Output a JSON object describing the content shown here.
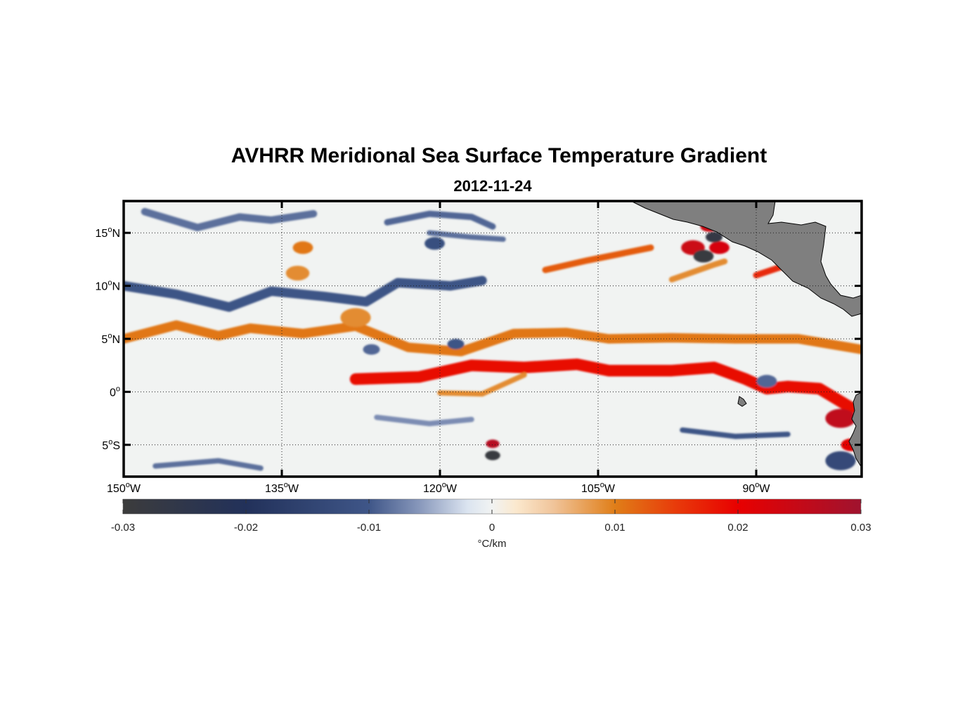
{
  "map": {
    "title": "AVHRR Meridional Sea Surface Temperature Gradient",
    "subtitle": "2012-11-24",
    "lon_range": [
      -150,
      -80
    ],
    "lat_range": [
      -8,
      18
    ],
    "lon_ticks": [
      {
        "value": -150,
        "num": "150",
        "unit": "W"
      },
      {
        "value": -135,
        "num": "135",
        "unit": "W"
      },
      {
        "value": -120,
        "num": "120",
        "unit": "W"
      },
      {
        "value": -105,
        "num": "105",
        "unit": "W"
      },
      {
        "value": -90,
        "num": "90",
        "unit": "W"
      }
    ],
    "lat_ticks": [
      {
        "value": 15,
        "num": "15",
        "unit": "N"
      },
      {
        "value": 10,
        "num": "10",
        "unit": "N"
      },
      {
        "value": 5,
        "num": "5",
        "unit": "N"
      },
      {
        "value": 0,
        "num": "0",
        "unit": ""
      },
      {
        "value": -5,
        "num": "5",
        "unit": "S"
      }
    ],
    "degree_symbol": "o",
    "land_color": "#7f7f7f",
    "features": [
      {
        "type": "band",
        "sign": "pos",
        "pts": [
          [
            -150,
            5.0
          ],
          [
            -145,
            6.3
          ],
          [
            -141,
            5.3
          ],
          [
            -138,
            6.0
          ],
          [
            -133,
            5.5
          ],
          [
            -128,
            6.2
          ],
          [
            -123,
            4.2
          ],
          [
            -118,
            3.8
          ],
          [
            -113,
            5.5
          ],
          [
            -108,
            5.6
          ],
          [
            -104,
            5.0
          ],
          [
            -98,
            5.1
          ],
          [
            -92,
            5.0
          ],
          [
            -86,
            5.0
          ],
          [
            -80,
            4.0
          ]
        ],
        "width": 0.9,
        "strength": 0.35
      },
      {
        "type": "band",
        "sign": "pos",
        "pts": [
          [
            -128,
            1.2
          ],
          [
            -122,
            1.4
          ],
          [
            -117,
            2.5
          ],
          [
            -112,
            2.3
          ],
          [
            -107,
            2.6
          ],
          [
            -104,
            2.0
          ],
          [
            -98,
            2.0
          ],
          [
            -94,
            2.3
          ],
          [
            -91,
            1.2
          ],
          [
            -89,
            0.3
          ],
          [
            -87,
            0.5
          ],
          [
            -84,
            0.3
          ],
          [
            -81,
            -1.5
          ]
        ],
        "width": 1.1,
        "strength": 0.62
      },
      {
        "type": "band",
        "sign": "pos",
        "pts": [
          [
            -110,
            11.5
          ],
          [
            -106,
            12.4
          ],
          [
            -103,
            13.0
          ],
          [
            -100,
            13.6
          ]
        ],
        "width": 0.6,
        "strength": 0.42
      },
      {
        "type": "band",
        "sign": "pos",
        "pts": [
          [
            -98,
            10.6
          ],
          [
            -94,
            12.0
          ],
          [
            -93,
            12.3
          ]
        ],
        "width": 0.55,
        "strength": 0.3
      },
      {
        "type": "band",
        "sign": "pos",
        "pts": [
          [
            -120,
            -0.1
          ],
          [
            -116,
            -0.2
          ],
          [
            -112,
            1.6
          ]
        ],
        "width": 0.5,
        "strength": 0.3
      },
      {
        "type": "band",
        "sign": "pos",
        "pts": [
          [
            -90,
            11.0
          ],
          [
            -87,
            12.0
          ]
        ],
        "width": 0.6,
        "strength": 0.55
      },
      {
        "type": "blob",
        "sign": "pos",
        "lon": -133,
        "lat": 13.6,
        "r": 0.6,
        "strength": 0.35
      },
      {
        "type": "blob",
        "sign": "pos",
        "lon": -133.5,
        "lat": 11.2,
        "r": 0.7,
        "strength": 0.3
      },
      {
        "type": "blob",
        "sign": "pos",
        "lon": -128,
        "lat": 7.0,
        "r": 0.9,
        "strength": 0.3
      },
      {
        "type": "blob",
        "sign": "pos",
        "lon": -96,
        "lat": 13.6,
        "r": 0.7,
        "strength": 0.8
      },
      {
        "type": "blob",
        "sign": "pos",
        "lon": -93.5,
        "lat": 13.6,
        "r": 0.6,
        "strength": 0.75
      },
      {
        "type": "blob",
        "sign": "pos",
        "lon": -94.5,
        "lat": 15.6,
        "r": 0.5,
        "strength": 0.8
      },
      {
        "type": "blob",
        "sign": "pos",
        "lon": -115,
        "lat": -4.9,
        "r": 0.4,
        "strength": 0.9
      },
      {
        "type": "blob",
        "sign": "pos",
        "lon": -82,
        "lat": -2.5,
        "r": 0.9,
        "strength": 0.85
      },
      {
        "type": "blob",
        "sign": "pos",
        "lon": -81,
        "lat": -5.0,
        "r": 0.6,
        "strength": 0.7
      },
      {
        "type": "band",
        "sign": "neg",
        "pts": [
          [
            -150,
            10.0
          ],
          [
            -145,
            9.2
          ],
          [
            -140,
            8.0
          ],
          [
            -136,
            9.5
          ],
          [
            -131,
            9.0
          ],
          [
            -127,
            8.5
          ],
          [
            -124,
            10.3
          ],
          [
            -119,
            10.0
          ],
          [
            -116,
            10.5
          ]
        ],
        "width": 0.9,
        "strength": 0.35
      },
      {
        "type": "band",
        "sign": "neg",
        "pts": [
          [
            -148,
            17.0
          ],
          [
            -143,
            15.5
          ],
          [
            -139,
            16.5
          ],
          [
            -136,
            16.2
          ],
          [
            -132,
            16.8
          ]
        ],
        "width": 0.7,
        "strength": 0.28
      },
      {
        "type": "band",
        "sign": "neg",
        "pts": [
          [
            -125,
            16.0
          ],
          [
            -121,
            16.8
          ],
          [
            -117,
            16.5
          ],
          [
            -115,
            15.6
          ]
        ],
        "width": 0.6,
        "strength": 0.3
      },
      {
        "type": "band",
        "sign": "neg",
        "pts": [
          [
            -121,
            15.0
          ],
          [
            -117,
            14.6
          ],
          [
            -114,
            14.4
          ]
        ],
        "width": 0.5,
        "strength": 0.28
      },
      {
        "type": "band",
        "sign": "neg",
        "pts": [
          [
            -126,
            -2.4
          ],
          [
            -121,
            -3.0
          ],
          [
            -117,
            -2.6
          ]
        ],
        "width": 0.5,
        "strength": 0.22
      },
      {
        "type": "band",
        "sign": "neg",
        "pts": [
          [
            -147,
            -7.0
          ],
          [
            -141,
            -6.5
          ],
          [
            -137,
            -7.2
          ]
        ],
        "width": 0.5,
        "strength": 0.28
      },
      {
        "type": "band",
        "sign": "neg",
        "pts": [
          [
            -97,
            -3.6
          ],
          [
            -92,
            -4.2
          ],
          [
            -87,
            -4.0
          ]
        ],
        "width": 0.5,
        "strength": 0.35
      },
      {
        "type": "blob",
        "sign": "neg",
        "lon": -95,
        "lat": 12.8,
        "r": 0.6,
        "strength": 0.95
      },
      {
        "type": "blob",
        "sign": "neg",
        "lon": -94,
        "lat": 14.6,
        "r": 0.5,
        "strength": 0.9
      },
      {
        "type": "blob",
        "sign": "neg",
        "lon": -115,
        "lat": -6.0,
        "r": 0.45,
        "strength": 0.95
      },
      {
        "type": "blob",
        "sign": "neg",
        "lon": -120.5,
        "lat": 14.0,
        "r": 0.6,
        "strength": 0.4
      },
      {
        "type": "blob",
        "sign": "neg",
        "lon": -126.5,
        "lat": 4.0,
        "r": 0.5,
        "strength": 0.3
      },
      {
        "type": "blob",
        "sign": "neg",
        "lon": -118.5,
        "lat": 4.5,
        "r": 0.5,
        "strength": 0.35
      },
      {
        "type": "blob",
        "sign": "neg",
        "lon": -89,
        "lat": 1.0,
        "r": 0.6,
        "strength": 0.3
      },
      {
        "type": "blob",
        "sign": "neg",
        "lon": -82,
        "lat": -6.5,
        "r": 0.9,
        "strength": 0.45
      }
    ]
  },
  "colorbar": {
    "min": -0.03,
    "max": 0.03,
    "tick_labels": [
      "-0.03",
      "-0.02",
      "-0.01",
      "0",
      "0.01",
      "0.02",
      "0.03"
    ],
    "units": "°C/km",
    "stops": [
      {
        "v": -0.03,
        "c": "#3c3c3c"
      },
      {
        "v": -0.02,
        "c": "#22315a"
      },
      {
        "v": -0.01,
        "c": "#3f5688"
      },
      {
        "v": -0.006,
        "c": "#8696ba"
      },
      {
        "v": -0.002,
        "c": "#dbe4f0"
      },
      {
        "v": 0.0,
        "c": "#f1f3f2"
      },
      {
        "v": 0.002,
        "c": "#fbe8cd"
      },
      {
        "v": 0.005,
        "c": "#f0c49a"
      },
      {
        "v": 0.01,
        "c": "#e07e18"
      },
      {
        "v": 0.015,
        "c": "#e83a0a"
      },
      {
        "v": 0.02,
        "c": "#e80000"
      },
      {
        "v": 0.03,
        "c": "#a0132f"
      }
    ]
  }
}
